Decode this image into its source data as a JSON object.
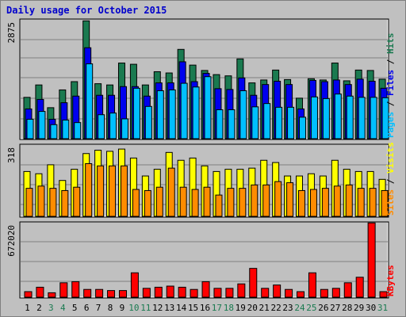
{
  "title": "Daily usage for October 2015",
  "colors": {
    "hits": "#1a7a50",
    "files": "#0000ee",
    "pages": "#00bfff",
    "visits": "#ffff00",
    "sites": "#ff8c00",
    "kbytes": "#ff0000",
    "weekend_label": "#1a7a50",
    "panel_bg": "#c0c0c0"
  },
  "legend_top": {
    "pages": "Pages",
    "files": "Files",
    "hits": "Hits",
    "sep": " / "
  },
  "legend_mid": {
    "sites": "Sites",
    "visits": "Visits",
    "sep": " / "
  },
  "legend_bot": {
    "kbytes": "KBytes"
  },
  "chart_data": [
    {
      "type": "bar",
      "panel": "top",
      "ymax_label": "2875",
      "ylim": [
        0,
        2875
      ],
      "categories": [
        "1",
        "2",
        "3",
        "4",
        "5",
        "6",
        "7",
        "8",
        "9",
        "10",
        "11",
        "12",
        "13",
        "14",
        "15",
        "16",
        "17",
        "18",
        "19",
        "20",
        "21",
        "22",
        "23",
        "24",
        "25",
        "26",
        "27",
        "28",
        "29",
        "30",
        "31"
      ],
      "series": [
        {
          "name": "Hits",
          "values": [
            1000,
            1300,
            750,
            1180,
            1380,
            2850,
            1330,
            1300,
            1830,
            1800,
            1300,
            1620,
            1590,
            2160,
            1780,
            1650,
            1550,
            1520,
            1930,
            1350,
            1420,
            1660,
            1430,
            980,
            1450,
            1420,
            1830,
            1400,
            1660,
            1650,
            1440
          ]
        },
        {
          "name": "Files",
          "values": [
            720,
            950,
            470,
            870,
            1030,
            2200,
            1050,
            1050,
            1260,
            1260,
            1030,
            1350,
            1350,
            1860,
            1380,
            1580,
            1210,
            1190,
            1470,
            1050,
            1310,
            1390,
            1310,
            720,
            1410,
            1380,
            1420,
            1310,
            1440,
            1390,
            1220
          ]
        },
        {
          "name": "Pages",
          "values": [
            470,
            660,
            340,
            450,
            390,
            1810,
            580,
            620,
            480,
            1220,
            780,
            1160,
            1180,
            1340,
            1250,
            1500,
            700,
            700,
            1160,
            770,
            850,
            760,
            760,
            520,
            1010,
            970,
            1080,
            1030,
            1000,
            1000,
            990
          ]
        }
      ]
    },
    {
      "type": "bar",
      "panel": "middle",
      "ymax_label": "318",
      "ylim": [
        0,
        318
      ],
      "categories": [
        "1",
        "2",
        "3",
        "4",
        "5",
        "6",
        "7",
        "8",
        "9",
        "10",
        "11",
        "12",
        "13",
        "14",
        "15",
        "16",
        "17",
        "18",
        "19",
        "20",
        "21",
        "22",
        "23",
        "24",
        "25",
        "26",
        "27",
        "28",
        "29",
        "30",
        "31"
      ],
      "series": [
        {
          "name": "Visits",
          "values": [
            200,
            190,
            230,
            160,
            210,
            280,
            295,
            290,
            300,
            260,
            180,
            210,
            285,
            250,
            260,
            225,
            200,
            210,
            210,
            215,
            250,
            240,
            180,
            180,
            190,
            180,
            250,
            210,
            200,
            200,
            165
          ]
        },
        {
          "name": "Sites",
          "values": [
            125,
            135,
            125,
            115,
            130,
            235,
            225,
            225,
            225,
            120,
            115,
            130,
            215,
            130,
            120,
            130,
            95,
            125,
            125,
            140,
            140,
            155,
            150,
            115,
            120,
            125,
            135,
            140,
            125,
            125,
            115
          ]
        }
      ]
    },
    {
      "type": "bar",
      "panel": "bottom",
      "ymax_label": "672020",
      "ylim": [
        0,
        672020
      ],
      "categories": [
        "1",
        "2",
        "3",
        "4",
        "5",
        "6",
        "7",
        "8",
        "9",
        "10",
        "11",
        "12",
        "13",
        "14",
        "15",
        "16",
        "17",
        "18",
        "19",
        "20",
        "21",
        "22",
        "23",
        "24",
        "25",
        "26",
        "27",
        "28",
        "29",
        "30",
        "31"
      ],
      "series": [
        {
          "name": "KBytes",
          "values": [
            50000,
            90000,
            40000,
            130000,
            140000,
            70000,
            70000,
            60000,
            60000,
            220000,
            80000,
            90000,
            100000,
            90000,
            70000,
            140000,
            80000,
            80000,
            120000,
            260000,
            80000,
            110000,
            70000,
            50000,
            220000,
            70000,
            80000,
            130000,
            180000,
            670000,
            50000
          ]
        }
      ]
    }
  ],
  "weekend_days": [
    3,
    4,
    10,
    11,
    17,
    18,
    24,
    25,
    31
  ]
}
